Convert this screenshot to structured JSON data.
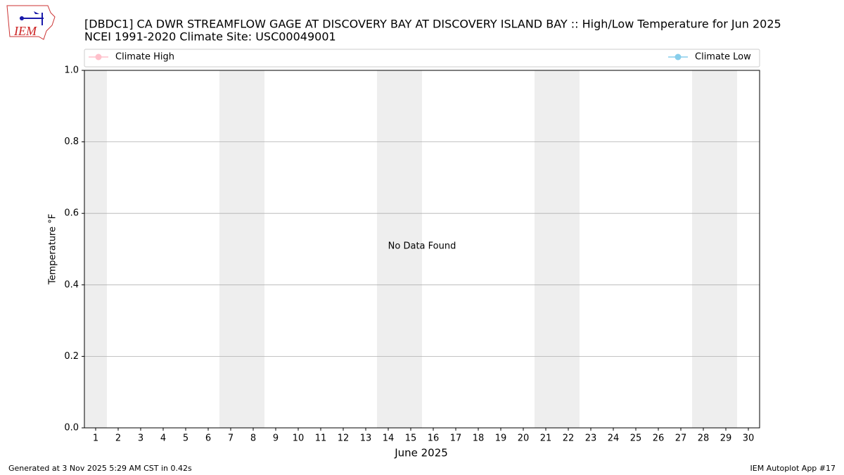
{
  "logo": "IEM",
  "chart_data": {
    "type": "line",
    "title": "[DBDC1] CA DWR STREAMFLOW GAGE  AT DISCOVERY BAY AT DISCOVERY ISLAND BAY :: High/Low Temperature for Jun 2025",
    "subtitle": "NCEI 1991-2020 Climate Site: USC00049001",
    "x": [
      1,
      2,
      3,
      4,
      5,
      6,
      7,
      8,
      9,
      10,
      11,
      12,
      13,
      14,
      15,
      16,
      17,
      18,
      19,
      20,
      21,
      22,
      23,
      24,
      25,
      26,
      27,
      28,
      29,
      30
    ],
    "xlim": [
      0.5,
      30.5
    ],
    "xticks": [
      1,
      2,
      3,
      4,
      5,
      6,
      7,
      8,
      9,
      10,
      11,
      12,
      13,
      14,
      15,
      16,
      17,
      18,
      19,
      20,
      21,
      22,
      23,
      24,
      25,
      26,
      27,
      28,
      29,
      30
    ],
    "xlabel": "June 2025",
    "ylabel": "Temperature °F",
    "ylim": [
      0,
      1
    ],
    "yticks": [
      {
        "value": 0,
        "label": "0.0"
      },
      {
        "value": 0.2,
        "label": "0.2"
      },
      {
        "value": 0.4,
        "label": "0.4"
      },
      {
        "value": 0.6,
        "label": "0.6"
      },
      {
        "value": 0.8,
        "label": "0.8"
      },
      {
        "value": 1,
        "label": "1.0"
      }
    ],
    "grid": true,
    "shaded_days": [
      1,
      7,
      8,
      14,
      15,
      21,
      22,
      28,
      29
    ],
    "shade_color": "#eeeeee",
    "annotation": "No Data Found",
    "series": [
      {
        "name": "Climate High",
        "color": "#ffc0cb",
        "values": [
          null,
          null,
          null,
          null,
          null,
          null,
          null,
          null,
          null,
          null,
          null,
          null,
          null,
          null,
          null,
          null,
          null,
          null,
          null,
          null,
          null,
          null,
          null,
          null,
          null,
          null,
          null,
          null,
          null,
          null
        ]
      },
      {
        "name": "Climate Low",
        "color": "#87ceeb",
        "values": [
          null,
          null,
          null,
          null,
          null,
          null,
          null,
          null,
          null,
          null,
          null,
          null,
          null,
          null,
          null,
          null,
          null,
          null,
          null,
          null,
          null,
          null,
          null,
          null,
          null,
          null,
          null,
          null,
          null,
          null
        ]
      }
    ]
  },
  "footer": {
    "left": "Generated at 3 Nov 2025 5:29 AM CST in 0.42s",
    "right": "IEM Autoplot App #17"
  }
}
